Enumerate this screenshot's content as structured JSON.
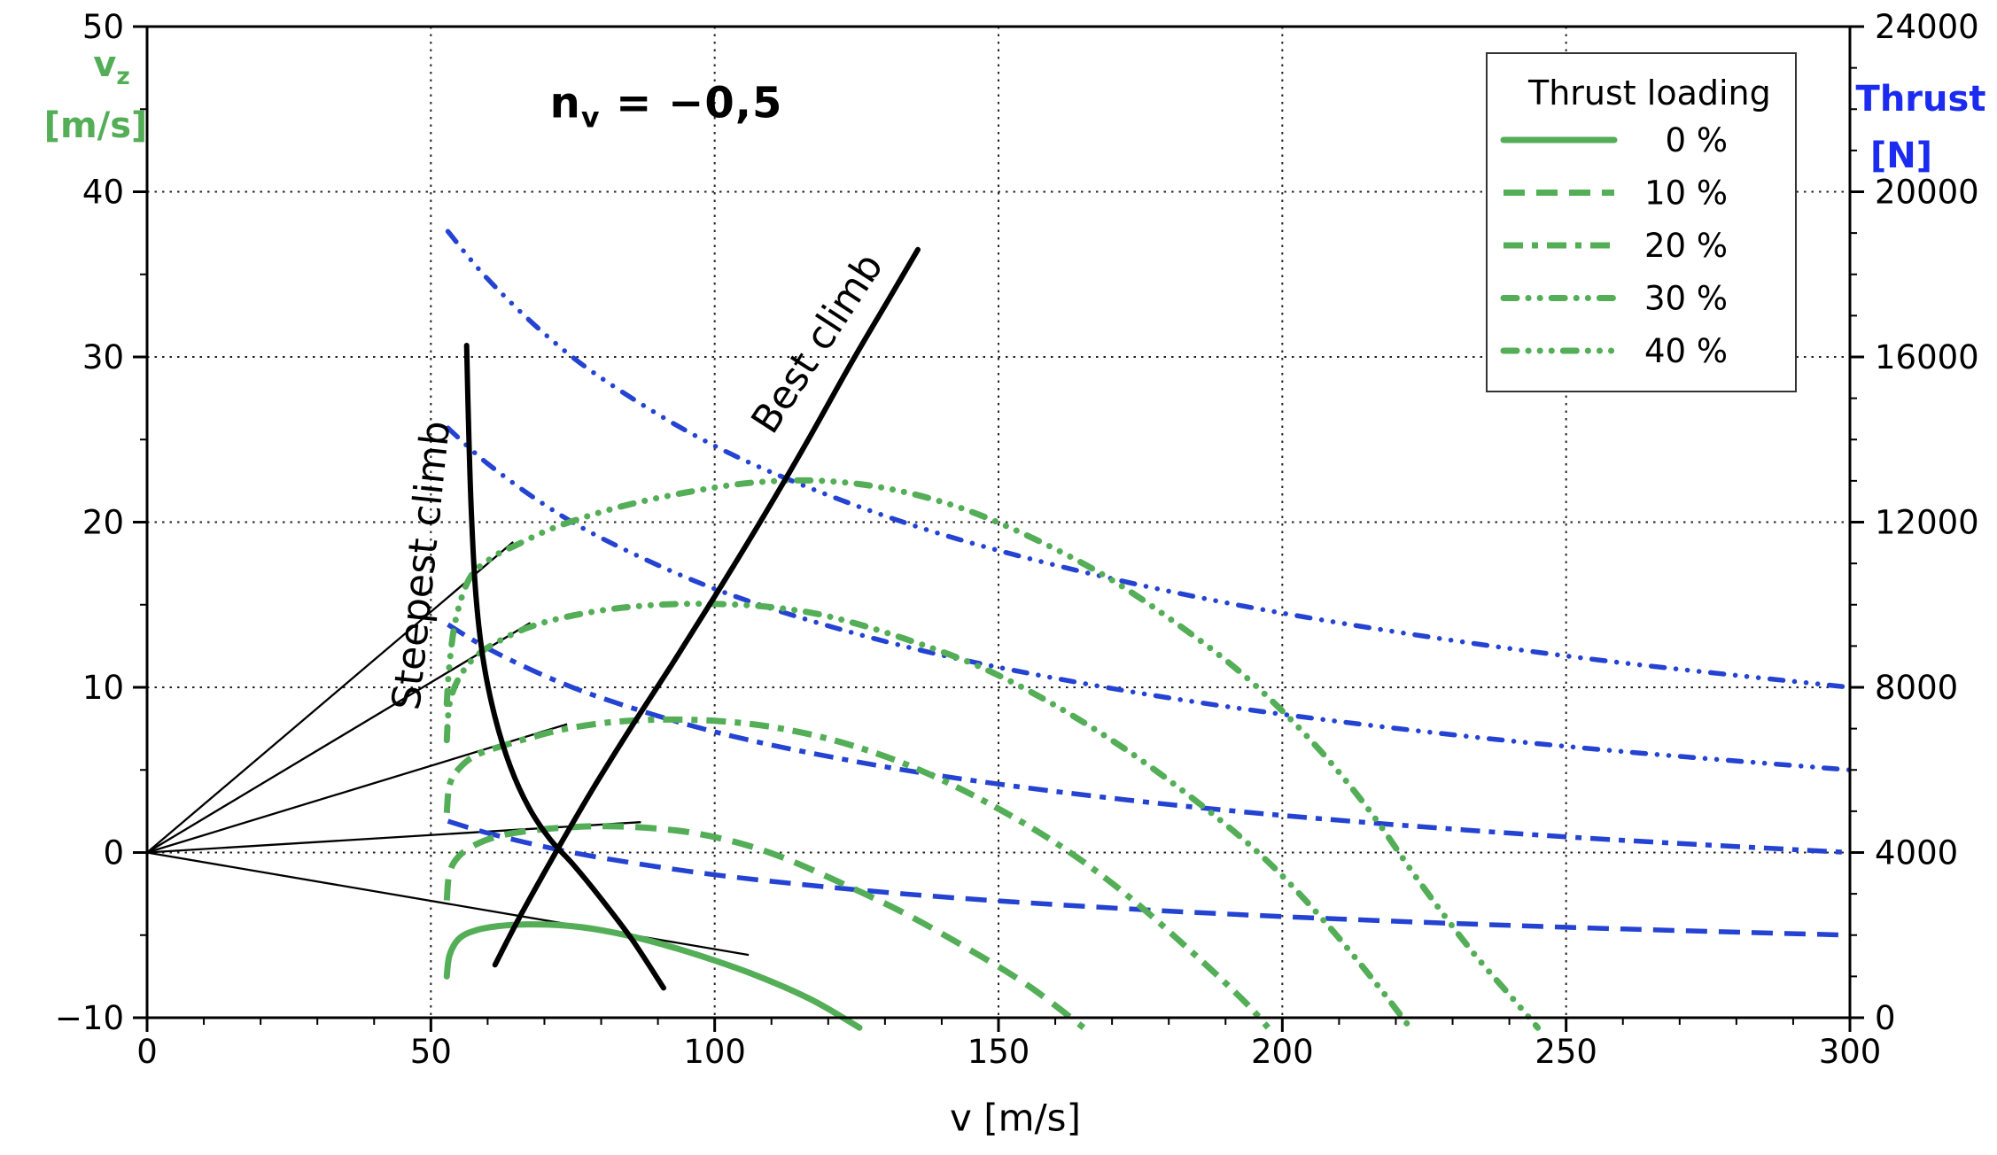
{
  "chart_data": {
    "type": "line",
    "title": {
      "base": "n",
      "sub": "v",
      "rest": " = −0,5"
    },
    "x_axis": {
      "label": "v [m/s]",
      "min": 0,
      "max": 300,
      "minor_step": 10,
      "grid": true,
      "tick_values": [
        0,
        50,
        100,
        150,
        200,
        250,
        300
      ],
      "tick_labels": [
        "0",
        "50",
        "100",
        "150",
        "200",
        "250",
        "300"
      ]
    },
    "y_left": {
      "symbol": "v",
      "symbol_sub": "z",
      "unit": "[m/s]",
      "min": -10,
      "max": 50,
      "minor_step": 5,
      "tick_values": [
        -10,
        0,
        10,
        20,
        30,
        40,
        50
      ],
      "tick_labels": [
        "−10",
        "0",
        "10",
        "20",
        "30",
        "40",
        "50"
      ],
      "grid_values": [
        0,
        10,
        20,
        30,
        40
      ],
      "color": "#54ae57"
    },
    "y_right": {
      "label": "Thrust",
      "unit": "[N]",
      "min": 0,
      "max": 24000,
      "minor_step": 1000,
      "tick_values": [
        0,
        4000,
        8000,
        12000,
        16000,
        20000,
        24000
      ],
      "tick_labels": [
        "0",
        "4000",
        "8000",
        "12000",
        "16000",
        "20000",
        "24000"
      ],
      "color": "#1b2cf0"
    },
    "legend": {
      "title": "Thrust loading",
      "entries": [
        {
          "label": "0 %",
          "style": "solid"
        },
        {
          "label": "10 %",
          "style": "dashed"
        },
        {
          "label": "20 %",
          "style": "dashdot"
        },
        {
          "label": "30 %",
          "style": "dashdotdot"
        },
        {
          "label": "40 %",
          "style": "dashdotdotdot"
        }
      ]
    },
    "colors": {
      "climb_curves": "#54ae57",
      "thrust_curves": "#2543d2",
      "loci": "#000000"
    },
    "series_climb": [
      {
        "label": "0 %",
        "loading_pct": 0,
        "style": "solid",
        "points": [
          [
            52.8,
            -7.5
          ],
          [
            53.3,
            -6.2
          ],
          [
            55,
            -5.2
          ],
          [
            58,
            -4.7
          ],
          [
            62,
            -4.45
          ],
          [
            67,
            -4.35
          ],
          [
            73,
            -4.4
          ],
          [
            80,
            -4.7
          ],
          [
            88,
            -5.3
          ],
          [
            97,
            -6.2
          ],
          [
            107,
            -7.4
          ],
          [
            117,
            -8.9
          ],
          [
            125.5,
            -10.6
          ]
        ]
      },
      {
        "label": "10 %",
        "loading_pct": 10,
        "style": "dashed",
        "points": [
          [
            52.8,
            -2.9
          ],
          [
            53.3,
            -1.2
          ],
          [
            55,
            -0.2
          ],
          [
            58,
            0.5
          ],
          [
            62,
            1.0
          ],
          [
            67,
            1.3
          ],
          [
            73,
            1.5
          ],
          [
            80,
            1.6
          ],
          [
            88,
            1.5
          ],
          [
            96,
            1.2
          ],
          [
            104,
            0.6
          ],
          [
            112,
            -0.3
          ],
          [
            122,
            -1.8
          ],
          [
            133,
            -3.6
          ],
          [
            144,
            -5.7
          ],
          [
            155,
            -8.0
          ],
          [
            165,
            -10.6
          ]
        ]
      },
      {
        "label": "20 %",
        "loading_pct": 20,
        "style": "dashdot",
        "points": [
          [
            52.8,
            2.4
          ],
          [
            53.3,
            4.1
          ],
          [
            55,
            5.1
          ],
          [
            58,
            5.9
          ],
          [
            63,
            6.5
          ],
          [
            68,
            7.0
          ],
          [
            74,
            7.5
          ],
          [
            82,
            7.9
          ],
          [
            91,
            8.05
          ],
          [
            101,
            7.95
          ],
          [
            111,
            7.55
          ],
          [
            122,
            6.7
          ],
          [
            134,
            5.3
          ],
          [
            147,
            3.2
          ],
          [
            160,
            0.6
          ],
          [
            172,
            -2.4
          ],
          [
            184,
            -6.0
          ],
          [
            193,
            -8.9
          ],
          [
            197.5,
            -10.6
          ]
        ]
      },
      {
        "label": "30 %",
        "loading_pct": 30,
        "style": "dashdotdot",
        "points": [
          [
            52.8,
            6.8
          ],
          [
            53.3,
            9.0
          ],
          [
            55,
            10.6
          ],
          [
            58,
            11.9
          ],
          [
            62,
            12.8
          ],
          [
            67,
            13.6
          ],
          [
            73,
            14.2
          ],
          [
            81,
            14.7
          ],
          [
            90,
            15.0
          ],
          [
            100,
            15.05
          ],
          [
            110,
            14.85
          ],
          [
            120,
            14.3
          ],
          [
            133,
            13.0
          ],
          [
            147,
            11.2
          ],
          [
            160,
            8.9
          ],
          [
            173,
            6.1
          ],
          [
            186,
            2.8
          ],
          [
            197,
            -0.4
          ],
          [
            207,
            -4.0
          ],
          [
            216,
            -7.7
          ],
          [
            222.5,
            -10.6
          ]
        ]
      },
      {
        "label": "40 %",
        "loading_pct": 40,
        "style": "dashdotdotdot",
        "points": [
          [
            52.8,
            9.0
          ],
          [
            53.3,
            11.5
          ],
          [
            54.5,
            14.3
          ],
          [
            57,
            16.7
          ],
          [
            61,
            17.9
          ],
          [
            65,
            18.6
          ],
          [
            72,
            19.7
          ],
          [
            83,
            20.9
          ],
          [
            95,
            21.8
          ],
          [
            107,
            22.4
          ],
          [
            119,
            22.5
          ],
          [
            131,
            22.0
          ],
          [
            143,
            20.9
          ],
          [
            155,
            19.2
          ],
          [
            168,
            16.9
          ],
          [
            180,
            14.2
          ],
          [
            193,
            10.8
          ],
          [
            205,
            6.8
          ],
          [
            215,
            2.7
          ],
          [
            224,
            -1.7
          ],
          [
            233,
            -5.8
          ],
          [
            241,
            -9.0
          ],
          [
            245,
            -10.6
          ]
        ]
      }
    ],
    "series_thrust": [
      {
        "label": "10 %",
        "loading_pct": 10,
        "style": "dashed",
        "points": [
          [
            53,
            4760
          ],
          [
            60,
            4472
          ],
          [
            70,
            4141
          ],
          [
            80,
            3873
          ],
          [
            95,
            3553
          ],
          [
            110,
            3302
          ],
          [
            130,
            3038
          ],
          [
            150,
            2828
          ],
          [
            175,
            2619
          ],
          [
            200,
            2449
          ],
          [
            230,
            2284
          ],
          [
            260,
            2148
          ],
          [
            300,
            2000
          ]
        ]
      },
      {
        "label": "20 %",
        "loading_pct": 20,
        "style": "dashdot",
        "points": [
          [
            53,
            9520
          ],
          [
            60,
            8944
          ],
          [
            70,
            8281
          ],
          [
            80,
            7746
          ],
          [
            95,
            7106
          ],
          [
            110,
            6604
          ],
          [
            130,
            6076
          ],
          [
            150,
            5657
          ],
          [
            175,
            5238
          ],
          [
            200,
            4899
          ],
          [
            230,
            4568
          ],
          [
            260,
            4296
          ],
          [
            300,
            4000
          ]
        ]
      },
      {
        "label": "30 %",
        "loading_pct": 30,
        "style": "dashdotdot",
        "points": [
          [
            53,
            14280
          ],
          [
            60,
            13416
          ],
          [
            70,
            12422
          ],
          [
            80,
            11619
          ],
          [
            95,
            10659
          ],
          [
            110,
            9906
          ],
          [
            130,
            9113
          ],
          [
            150,
            8485
          ],
          [
            175,
            7857
          ],
          [
            200,
            7348
          ],
          [
            230,
            6852
          ],
          [
            260,
            6444
          ],
          [
            300,
            6000
          ]
        ]
      },
      {
        "label": "40 %",
        "loading_pct": 40,
        "style": "dashdotdotdot",
        "points": [
          [
            53,
            19040
          ],
          [
            60,
            17889
          ],
          [
            70,
            16562
          ],
          [
            80,
            15492
          ],
          [
            95,
            14213
          ],
          [
            110,
            13208
          ],
          [
            130,
            12151
          ],
          [
            150,
            11314
          ],
          [
            175,
            10476
          ],
          [
            200,
            9798
          ],
          [
            230,
            9136
          ],
          [
            260,
            8593
          ],
          [
            300,
            8000
          ]
        ]
      }
    ],
    "loci": [
      {
        "label": "Steepest climb",
        "label_pos": [
          50.6,
          17.3
        ],
        "label_rotation": -84,
        "points": [
          [
            56.3,
            30.7
          ],
          [
            56.7,
            25
          ],
          [
            57.2,
            20
          ],
          [
            58,
            15.3
          ],
          [
            59.3,
            11.5
          ],
          [
            61.3,
            8.2
          ],
          [
            64,
            5.2
          ],
          [
            67.3,
            2.7
          ],
          [
            71,
            0.8
          ],
          [
            75,
            -0.7
          ],
          [
            80,
            -2.8
          ],
          [
            85.5,
            -5.3
          ],
          [
            91,
            -8.2
          ]
        ]
      },
      {
        "label": "Best climb",
        "label_pos": [
          120,
          30.4
        ],
        "label_rotation": -57,
        "points": [
          [
            61.3,
            -6.8
          ],
          [
            65.5,
            -4.0
          ],
          [
            70,
            -1.2
          ],
          [
            74.5,
            1.5
          ],
          [
            79.5,
            4.4
          ],
          [
            85.5,
            7.7
          ],
          [
            92.5,
            11.4
          ],
          [
            100,
            15.5
          ],
          [
            108,
            20.0
          ],
          [
            116,
            24.7
          ],
          [
            124,
            29.6
          ],
          [
            130.5,
            33.4
          ],
          [
            135.8,
            36.5
          ]
        ]
      }
    ],
    "tangent_lines": [
      {
        "from": [
          0,
          0
        ],
        "to": [
          64.5,
          18.8
        ]
      },
      {
        "from": [
          0,
          0
        ],
        "to": [
          67.5,
          13.9
        ]
      },
      {
        "from": [
          0,
          0
        ],
        "to": [
          74.0,
          7.77
        ]
      },
      {
        "from": [
          0,
          0
        ],
        "to": [
          87.0,
          1.84
        ]
      },
      {
        "from": [
          0,
          0
        ],
        "to": [
          106.0,
          -6.2
        ]
      }
    ]
  }
}
